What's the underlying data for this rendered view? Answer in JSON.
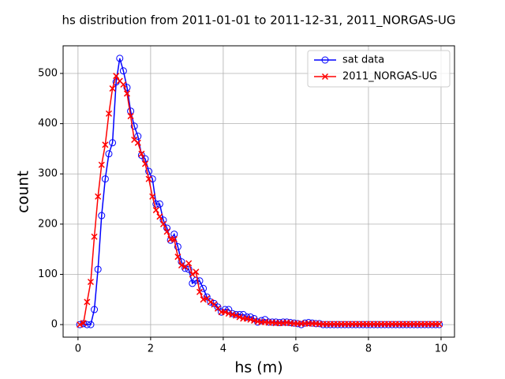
{
  "chart_data": {
    "type": "line",
    "title": "hs distribution from 2011-01-01 to 2011-12-31, 2011_NORGAS-UG",
    "x_label": "hs (m)",
    "y_label": "count",
    "x": [
      0.05,
      0.15,
      0.25,
      0.35,
      0.45,
      0.55,
      0.65,
      0.75,
      0.85,
      0.95,
      1.05,
      1.15,
      1.25,
      1.35,
      1.45,
      1.55,
      1.65,
      1.75,
      1.85,
      1.95,
      2.05,
      2.15,
      2.25,
      2.35,
      2.45,
      2.55,
      2.65,
      2.75,
      2.85,
      2.95,
      3.05,
      3.15,
      3.25,
      3.35,
      3.45,
      3.55,
      3.65,
      3.75,
      3.85,
      3.95,
      4.05,
      4.15,
      4.25,
      4.35,
      4.45,
      4.55,
      4.65,
      4.75,
      4.85,
      4.95,
      5.05,
      5.15,
      5.25,
      5.35,
      5.45,
      5.55,
      5.65,
      5.75,
      5.85,
      5.95,
      6.05,
      6.15,
      6.25,
      6.35,
      6.45,
      6.55,
      6.65,
      6.75,
      6.85,
      6.95,
      7.05,
      7.15,
      7.25,
      7.35,
      7.45,
      7.55,
      7.65,
      7.75,
      7.85,
      7.95,
      8.05,
      8.15,
      8.25,
      8.35,
      8.45,
      8.55,
      8.65,
      8.75,
      8.85,
      8.95,
      9.05,
      9.15,
      9.25,
      9.35,
      9.45,
      9.55,
      9.65,
      9.75,
      9.85,
      9.95
    ],
    "series": [
      {
        "name": "sat data",
        "color": "#0000ff",
        "marker": "circle",
        "values": [
          0,
          2,
          0,
          0,
          30,
          110,
          217,
          290,
          340,
          362,
          483,
          530,
          505,
          472,
          425,
          395,
          375,
          337,
          330,
          305,
          290,
          240,
          240,
          208,
          192,
          168,
          180,
          155,
          125,
          112,
          110,
          82,
          88,
          87,
          72,
          55,
          45,
          42,
          35,
          25,
          30,
          30,
          22,
          20,
          20,
          20,
          15,
          15,
          12,
          5,
          8,
          10,
          5,
          5,
          5,
          4,
          5,
          5,
          4,
          3,
          2,
          0,
          3,
          4,
          3,
          2,
          2,
          0,
          0,
          0,
          0,
          0,
          0,
          0,
          0,
          0,
          0,
          0,
          0,
          0,
          0,
          0,
          0,
          0,
          0,
          0,
          0,
          0,
          0,
          0,
          0,
          0,
          0,
          0,
          0,
          0,
          0,
          0,
          0,
          0
        ]
      },
      {
        "name": "2011_NORGAS-UG",
        "color": "#ff0000",
        "marker": "x",
        "values": [
          0,
          3,
          45,
          85,
          175,
          255,
          318,
          358,
          420,
          470,
          495,
          485,
          478,
          460,
          415,
          368,
          362,
          340,
          320,
          290,
          255,
          228,
          215,
          200,
          185,
          170,
          170,
          135,
          118,
          115,
          122,
          100,
          105,
          65,
          50,
          52,
          45,
          40,
          32,
          25,
          25,
          22,
          20,
          18,
          15,
          12,
          12,
          10,
          8,
          6,
          5,
          5,
          4,
          4,
          3,
          3,
          3,
          4,
          3,
          2,
          2,
          2,
          2,
          2,
          2,
          2,
          1,
          1,
          1,
          1,
          1,
          1,
          1,
          1,
          1,
          1,
          1,
          1,
          1,
          1,
          1,
          1,
          1,
          1,
          1,
          1,
          1,
          1,
          1,
          1,
          1,
          1,
          1,
          1,
          1,
          1,
          1,
          1,
          1,
          1
        ]
      }
    ],
    "xlim": [
      -0.41,
      10.37
    ],
    "ylim": [
      -25,
      555
    ],
    "xticks": [
      0,
      2,
      4,
      6,
      8,
      10
    ],
    "yticks": [
      0,
      100,
      200,
      300,
      400,
      500
    ],
    "grid": true,
    "legend": "upper right"
  }
}
